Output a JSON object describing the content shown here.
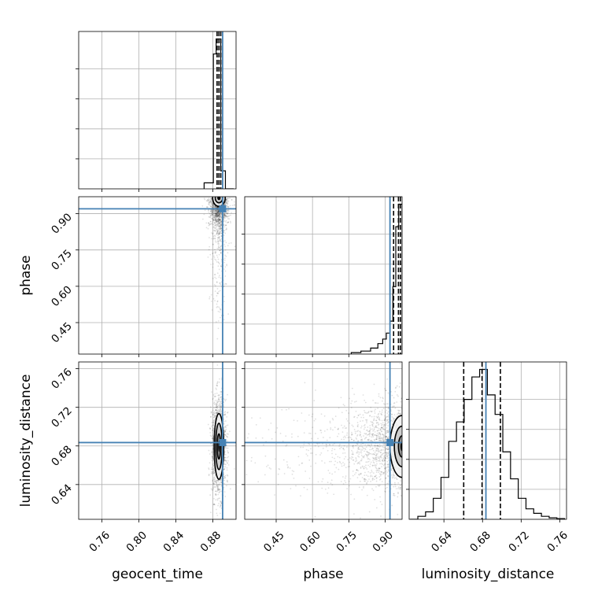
{
  "chart_data": {
    "type": "corner",
    "parameters": [
      "geocent_time",
      "phase",
      "luminosity_distance"
    ],
    "axis_labels": {
      "geocent_time": "geocent_time",
      "phase": "phase",
      "luminosity_distance": "luminosity_distance"
    },
    "ranges": {
      "geocent_time": [
        0.735,
        0.905
      ],
      "phase": [
        0.32,
        0.97
      ],
      "luminosity_distance": [
        0.604,
        0.767
      ]
    },
    "ticks": {
      "geocent_time": {
        "values": [
          0.76,
          0.8,
          0.84,
          0.88
        ],
        "labels": [
          "0.76",
          "0.80",
          "0.84",
          "0.88"
        ]
      },
      "phase": {
        "values": [
          0.45,
          0.6,
          0.75,
          0.9
        ],
        "labels": [
          "0.45",
          "0.60",
          "0.75",
          "0.90"
        ]
      },
      "luminosity_distance": {
        "values": [
          0.64,
          0.68,
          0.72,
          0.76
        ],
        "labels": [
          "0.64",
          "0.68",
          "0.72",
          "0.76"
        ]
      }
    },
    "truths": {
      "geocent_time": 0.8905,
      "phase": 0.92,
      "luminosity_distance": 0.6835
    },
    "quantiles": {
      "geocent_time": [
        0.8845,
        0.8865,
        0.8885
      ],
      "phase": [
        0.935,
        0.955,
        0.963
      ],
      "luminosity_distance": [
        0.6605,
        0.6795,
        0.6985
      ]
    },
    "histograms": {
      "geocent_time": {
        "edges": [
          0.8705,
          0.8805,
          0.8835,
          0.8885,
          0.8935,
          0.9025
        ],
        "counts": [
          0.04,
          0.9,
          1.0,
          0.12,
          0
        ]
      },
      "phase": {
        "edges": [
          0.76,
          0.8,
          0.84,
          0.87,
          0.89,
          0.905,
          0.92,
          0.932,
          0.944,
          0.956,
          0.97
        ],
        "counts": [
          0.01,
          0.02,
          0.04,
          0.07,
          0.1,
          0.14,
          0.22,
          0.45,
          0.85,
          1.0
        ]
      },
      "luminosity_distance": {
        "edges": [
          0.605,
          0.613,
          0.621,
          0.629,
          0.637,
          0.645,
          0.653,
          0.661,
          0.669,
          0.677,
          0.685,
          0.693,
          0.701,
          0.709,
          0.717,
          0.725,
          0.733,
          0.741,
          0.749,
          0.757,
          0.765
        ],
        "counts": [
          0,
          0.02,
          0.05,
          0.14,
          0.28,
          0.52,
          0.65,
          0.8,
          0.95,
          1.0,
          0.83,
          0.7,
          0.45,
          0.27,
          0.14,
          0.07,
          0.04,
          0.02,
          0.01,
          0.005
        ]
      }
    },
    "contours": [
      {
        "x": "geocent_time",
        "y": "phase",
        "center": [
          0.8865,
          0.965
        ],
        "widths": [
          0.004,
          0.0068
        ],
        "heights": [
          0.02,
          0.035
        ]
      },
      {
        "x": "geocent_time",
        "y": "luminosity_distance",
        "center": [
          0.8865,
          0.6795
        ],
        "widths": [
          0.0018,
          0.0035,
          0.0052
        ],
        "heights": [
          0.013,
          0.024,
          0.034
        ]
      },
      {
        "x": "phase",
        "y": "luminosity_distance",
        "center": [
          0.97,
          0.6795
        ],
        "widths": [
          0.015,
          0.032,
          0.05
        ],
        "heights": [
          0.011,
          0.021,
          0.032
        ]
      }
    ],
    "colors": {
      "truth": "#4682b4",
      "data": "#000000",
      "grid": "#b0b0b0"
    }
  }
}
